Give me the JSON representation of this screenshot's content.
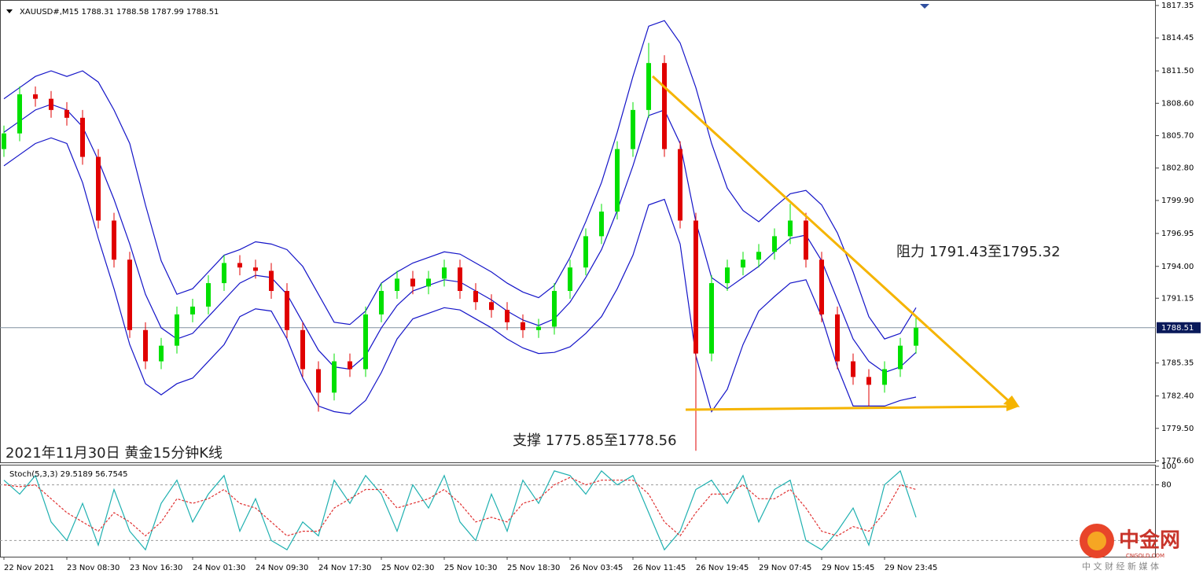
{
  "chart_data": [
    {
      "type": "candlestick",
      "title": "XAUUSD#,M15  1788.31 1788.58 1787.99 1788.51",
      "categories": [
        "22 Nov 2021",
        null,
        null,
        null,
        "23 Nov 08:30",
        null,
        null,
        null,
        "23 Nov 16:30",
        null,
        null,
        null,
        "24 Nov 01:30",
        null,
        null,
        null,
        "24 Nov 09:30",
        null,
        null,
        null,
        "24 Nov 17:30",
        null,
        null,
        null,
        "25 Nov 02:30",
        null,
        null,
        null,
        "25 Nov 10:30",
        null,
        null,
        null,
        "25 Nov 18:30",
        null,
        null,
        null,
        "26 Nov 03:45",
        null,
        null,
        null,
        "26 Nov 11:45",
        null,
        null,
        null,
        "26 Nov 19:45",
        null,
        null,
        null,
        "29 Nov 07:45",
        null,
        null,
        null,
        "29 Nov 15:45",
        null,
        null,
        null,
        "29 Nov 23:45",
        null,
        null
      ],
      "open": [
        1804.5,
        1805.9,
        1809.4,
        1809.0,
        1808.0,
        1807.3,
        1803.8,
        1798.1,
        1794.6,
        1788.3,
        1785.5,
        1786.9,
        1789.7,
        1790.4,
        1792.5,
        1794.3,
        1793.9,
        1793.6,
        1791.8,
        1788.3,
        1784.8,
        1782.7,
        1785.5,
        1784.8,
        1789.7,
        1791.8,
        1792.9,
        1792.2,
        1792.9,
        1793.9,
        1791.8,
        1790.8,
        1790.1,
        1789.0,
        1788.3,
        1788.6,
        1791.8,
        1793.9,
        1796.7,
        1798.9,
        1804.5,
        1808.0,
        1812.2,
        1804.5,
        1798.1,
        1786.2,
        1792.5,
        1793.9,
        1794.6,
        1795.3,
        1796.7,
        1798.1,
        1794.6,
        1789.7,
        1785.5,
        1784.1,
        1783.4,
        1784.8,
        1786.9
      ],
      "high": [
        1806.6,
        1810.1,
        1810.1,
        1809.7,
        1808.7,
        1808.0,
        1804.5,
        1798.8,
        1795.3,
        1789.0,
        1787.6,
        1790.4,
        1791.1,
        1793.2,
        1795.0,
        1795.0,
        1794.6,
        1794.3,
        1792.5,
        1789.0,
        1785.5,
        1786.2,
        1786.2,
        1790.4,
        1792.5,
        1793.6,
        1793.6,
        1793.6,
        1794.6,
        1794.6,
        1792.5,
        1791.5,
        1790.8,
        1789.7,
        1789.3,
        1792.5,
        1794.6,
        1797.4,
        1799.6,
        1805.2,
        1808.7,
        1814.0,
        1812.9,
        1805.2,
        1798.8,
        1793.2,
        1794.6,
        1795.3,
        1796.0,
        1797.4,
        1799.6,
        1798.8,
        1795.3,
        1790.4,
        1786.2,
        1784.8,
        1785.5,
        1787.6,
        1789.6
      ],
      "low": [
        1803.8,
        1805.2,
        1808.3,
        1807.3,
        1806.6,
        1803.1,
        1797.4,
        1793.9,
        1787.6,
        1784.8,
        1784.8,
        1786.2,
        1789.0,
        1789.7,
        1791.8,
        1793.2,
        1792.9,
        1791.1,
        1787.6,
        1784.1,
        1781.0,
        1782.0,
        1784.1,
        1784.1,
        1789.0,
        1791.1,
        1791.5,
        1791.5,
        1792.2,
        1791.1,
        1790.1,
        1789.4,
        1788.3,
        1787.6,
        1787.6,
        1787.9,
        1791.1,
        1793.2,
        1796.0,
        1798.2,
        1803.8,
        1807.3,
        1803.8,
        1797.4,
        1777.5,
        1785.5,
        1791.8,
        1793.2,
        1793.9,
        1794.6,
        1796.0,
        1793.9,
        1789.0,
        1784.8,
        1783.4,
        1781.5,
        1782.7,
        1784.1,
        1786.2
      ],
      "close": [
        1805.9,
        1809.4,
        1809.0,
        1808.0,
        1807.3,
        1803.8,
        1798.1,
        1794.6,
        1788.3,
        1785.5,
        1786.9,
        1789.7,
        1790.4,
        1792.5,
        1794.3,
        1793.9,
        1793.6,
        1791.8,
        1788.3,
        1784.8,
        1782.7,
        1785.5,
        1784.8,
        1789.7,
        1791.8,
        1792.9,
        1792.2,
        1792.9,
        1793.9,
        1791.8,
        1790.8,
        1790.1,
        1789.0,
        1788.3,
        1788.6,
        1791.8,
        1793.9,
        1796.7,
        1798.9,
        1804.5,
        1808.0,
        1812.2,
        1804.5,
        1798.1,
        1786.2,
        1792.5,
        1793.9,
        1794.6,
        1795.3,
        1796.7,
        1798.1,
        1794.6,
        1789.7,
        1785.5,
        1784.1,
        1783.4,
        1784.8,
        1786.9,
        1788.51
      ],
      "up_color": "#00e000",
      "down_color": "#e00000",
      "series": [
        {
          "color": "#1414c8",
          "values": [
            1809,
            1810,
            1811,
            1811.5,
            1811,
            1811.5,
            1810.5,
            1808,
            1805,
            1799.5,
            1794.5,
            1791.5,
            1792,
            1793.5,
            1795,
            1795.5,
            1796.2,
            1796,
            1795.5,
            1794,
            1791.5,
            1789,
            1788.8,
            1790,
            1792.5,
            1793.5,
            1794.3,
            1794.8,
            1795.3,
            1795.1,
            1794.3,
            1793.5,
            1792.5,
            1791.7,
            1791.2,
            1792.3,
            1794.8,
            1798,
            1801.5,
            1806,
            1811,
            1815.5,
            1816,
            1814,
            1810,
            1805,
            1801,
            1799,
            1798,
            1799.3,
            1800.5,
            1800.8,
            1799.5,
            1797,
            1793.5,
            1789.5,
            1787.5,
            1788,
            1790.3
          ]
        },
        {
          "color": "#1414c8",
          "values": [
            1806,
            1807,
            1808,
            1808.5,
            1808,
            1806.5,
            1803.5,
            1800,
            1796,
            1791.5,
            1788.5,
            1787.5,
            1788,
            1789.5,
            1791,
            1792.5,
            1793.2,
            1793,
            1791.5,
            1789,
            1786.5,
            1785,
            1784.8,
            1786,
            1788.5,
            1790.5,
            1791.8,
            1792.3,
            1792.8,
            1792.6,
            1791.8,
            1791,
            1790,
            1789.2,
            1788.7,
            1789.3,
            1790.8,
            1793,
            1795.5,
            1799,
            1803,
            1807.5,
            1808,
            1805,
            1798,
            1793,
            1792,
            1793,
            1794,
            1795.3,
            1796.5,
            1796.8,
            1794.5,
            1791,
            1787.5,
            1785.5,
            1784.5,
            1785,
            1786.3
          ]
        },
        {
          "color": "#1414c8",
          "values": [
            1803,
            1804,
            1805,
            1805.5,
            1805,
            1801.5,
            1796.5,
            1792,
            1787,
            1783.5,
            1782.5,
            1783.5,
            1784,
            1785.5,
            1787,
            1789.5,
            1790.2,
            1790,
            1787.5,
            1784,
            1781.5,
            1781,
            1780.8,
            1782,
            1784.5,
            1787.5,
            1789.3,
            1789.8,
            1790.3,
            1790.1,
            1789.3,
            1788.5,
            1787.5,
            1786.7,
            1786.2,
            1786.3,
            1786.8,
            1788,
            1789.5,
            1792,
            1795,
            1799.5,
            1800,
            1796,
            1786,
            1781,
            1783,
            1787,
            1790,
            1791.3,
            1792.5,
            1792.8,
            1789.5,
            1785,
            1781.5,
            1781.5,
            1781.5,
            1782,
            1782.3
          ]
        }
      ],
      "ylim": [
        1776.6,
        1817.35
      ],
      "yticks": [
        1817.35,
        1814.45,
        {
          "value": 1811.5,
          "label": "1811.50"
        },
        {
          "value": 1808.6,
          "label": "1808.60"
        },
        {
          "value": 1805.7,
          "label": "1805.70"
        },
        {
          "value": 1802.8,
          "label": "1802.80"
        },
        {
          "value": 1799.9,
          "label": "1799.90"
        },
        1796.95,
        {
          "value": 1794,
          "label": "1794.00"
        },
        1791.15,
        1785.35,
        {
          "value": 1782.4,
          "label": "1782.40"
        },
        {
          "value": 1779.5,
          "label": "1779.50"
        },
        {
          "value": 1776.6,
          "label": "1776.60"
        }
      ],
      "last_price": 1788.51,
      "annotations": [
        "阻力 1791.43至1795.32",
        "支撑 1775.85至1778.56",
        "2021年11月30日 黄金15分钟K线"
      ]
    },
    {
      "type": "line",
      "title": "Stoch(5,3,3) 29.5189 56.7545",
      "ylim": [
        0,
        100
      ],
      "yticks": [
        100,
        80
      ],
      "levels": [
        80,
        20
      ],
      "series": [
        {
          "color": "#1fb0b0",
          "dashed": false,
          "values": [
            85,
            70,
            90,
            40,
            20,
            60,
            15,
            75,
            30,
            10,
            60,
            85,
            40,
            70,
            90,
            30,
            65,
            20,
            10,
            40,
            25,
            85,
            60,
            90,
            70,
            30,
            80,
            55,
            90,
            40,
            20,
            70,
            30,
            85,
            60,
            95,
            90,
            70,
            95,
            80,
            90,
            50,
            10,
            30,
            75,
            85,
            60,
            90,
            40,
            75,
            85,
            20,
            10,
            30,
            55,
            15,
            80,
            95,
            45
          ]
        },
        {
          "color": "#e03030",
          "dashed": true,
          "values": [
            80,
            78,
            80,
            65,
            50,
            40,
            30,
            50,
            40,
            25,
            40,
            65,
            60,
            65,
            75,
            60,
            55,
            40,
            25,
            30,
            30,
            55,
            65,
            75,
            75,
            55,
            60,
            65,
            75,
            60,
            40,
            45,
            40,
            60,
            65,
            80,
            88,
            80,
            85,
            85,
            85,
            70,
            40,
            25,
            50,
            70,
            70,
            80,
            65,
            65,
            75,
            55,
            30,
            25,
            35,
            30,
            50,
            80,
            75
          ]
        }
      ]
    }
  ],
  "watermark": {
    "name": "中金网",
    "domain": "CNGOLD.COM",
    "slogan": "中 文 财 经 新 媒 体"
  }
}
